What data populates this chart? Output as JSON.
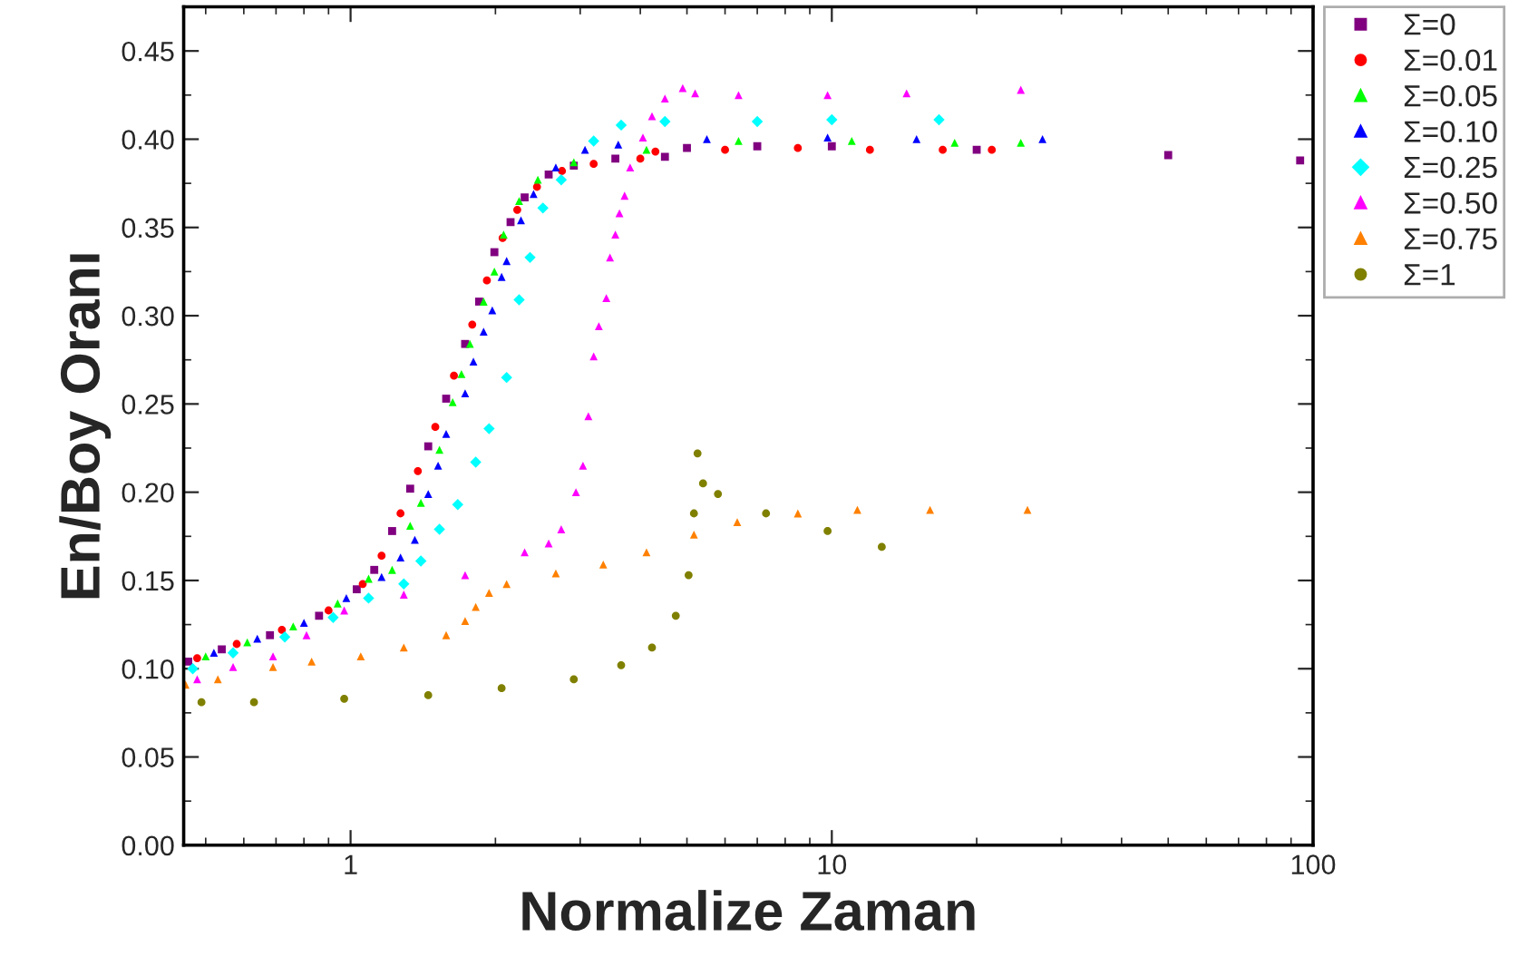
{
  "chart_data": {
    "type": "scatter",
    "xlabel": "Normalize Zaman",
    "ylabel": "En/Boy Oranı",
    "log": "x",
    "xlim": [
      0.45,
      100
    ],
    "xticks": [
      1,
      10,
      100
    ],
    "ylim": [
      0,
      0.475
    ],
    "yticks": [
      {
        "value": 0,
        "label": "0.00"
      },
      {
        "value": 0.05,
        "label": "0.05"
      },
      {
        "value": 0.1,
        "label": "0.10"
      },
      {
        "value": 0.15,
        "label": "0.15"
      },
      {
        "value": 0.2,
        "label": "0.20"
      },
      {
        "value": 0.25,
        "label": "0.25"
      },
      {
        "value": 0.3,
        "label": "0.30"
      },
      {
        "value": 0.35,
        "label": "0.35"
      },
      {
        "value": 0.4,
        "label": "0.40"
      },
      {
        "value": 0.45,
        "label": "0.45"
      }
    ],
    "grid": false,
    "legend": "right",
    "series": [
      {
        "name": "Σ=0",
        "color": "#800080",
        "marker": "square",
        "x": [
          0.46,
          0.54,
          0.68,
          0.86,
          1.03,
          1.12,
          1.22,
          1.33,
          1.45,
          1.58,
          1.73,
          1.85,
          1.99,
          2.15,
          2.3,
          2.58,
          2.91,
          3.55,
          4.5,
          5.0,
          7,
          10,
          20,
          50,
          94
        ],
        "values": [
          0.104,
          0.111,
          0.119,
          0.13,
          0.145,
          0.156,
          0.178,
          0.202,
          0.226,
          0.253,
          0.284,
          0.308,
          0.336,
          0.353,
          0.367,
          0.38,
          0.385,
          0.389,
          0.39,
          0.395,
          0.396,
          0.396,
          0.394,
          0.391,
          0.388
        ]
      },
      {
        "name": "Σ=0.01",
        "color": "#ff0000",
        "marker": "circle",
        "x": [
          0.48,
          0.58,
          0.72,
          0.9,
          1.06,
          1.16,
          1.27,
          1.38,
          1.5,
          1.64,
          1.79,
          1.92,
          2.07,
          2.22,
          2.44,
          2.75,
          3.2,
          4.0,
          4.3,
          6,
          8.5,
          12,
          17,
          21.5
        ],
        "values": [
          0.106,
          0.114,
          0.122,
          0.133,
          0.148,
          0.164,
          0.188,
          0.212,
          0.237,
          0.266,
          0.295,
          0.32,
          0.344,
          0.36,
          0.373,
          0.382,
          0.386,
          0.389,
          0.393,
          0.394,
          0.395,
          0.394,
          0.394,
          0.394
        ]
      },
      {
        "name": "Σ=0.05",
        "color": "#00ff00",
        "marker": "triangle",
        "x": [
          0.5,
          0.61,
          0.76,
          0.94,
          1.09,
          1.22,
          1.33,
          1.4,
          1.53,
          1.63,
          1.7,
          1.77,
          1.89,
          1.99,
          2.08,
          2.24,
          2.45,
          2.91,
          4.12,
          6.4,
          11,
          18,
          24.7
        ],
        "values": [
          0.107,
          0.115,
          0.124,
          0.137,
          0.151,
          0.156,
          0.181,
          0.194,
          0.224,
          0.251,
          0.267,
          0.284,
          0.308,
          0.325,
          0.346,
          0.365,
          0.377,
          0.387,
          0.394,
          0.399,
          0.399,
          0.398,
          0.398
        ]
      },
      {
        "name": "Σ=0.10",
        "color": "#0000ff",
        "marker": "triangle",
        "x": [
          0.52,
          0.64,
          0.8,
          0.98,
          1.16,
          1.27,
          1.36,
          1.45,
          1.52,
          1.58,
          1.73,
          1.8,
          1.89,
          1.97,
          2.06,
          2.11,
          2.26,
          2.4,
          2.67,
          3.07,
          3.6,
          5.5,
          9.8,
          15,
          27.4
        ],
        "values": [
          0.109,
          0.117,
          0.126,
          0.14,
          0.152,
          0.163,
          0.173,
          0.199,
          0.215,
          0.233,
          0.256,
          0.274,
          0.291,
          0.303,
          0.322,
          0.331,
          0.354,
          0.369,
          0.384,
          0.394,
          0.397,
          0.4,
          0.401,
          0.4,
          0.4
        ]
      },
      {
        "name": "Σ=0.25",
        "color": "#00ffff",
        "marker": "diamond",
        "x": [
          0.47,
          0.57,
          0.73,
          0.92,
          1.09,
          1.29,
          1.4,
          1.53,
          1.67,
          1.82,
          1.94,
          2.11,
          2.24,
          2.36,
          2.51,
          2.74,
          3.2,
          3.65,
          4.5,
          7,
          10,
          16.7
        ],
        "values": [
          0.1,
          0.109,
          0.118,
          0.129,
          0.14,
          0.148,
          0.161,
          0.179,
          0.193,
          0.217,
          0.236,
          0.265,
          0.309,
          0.333,
          0.361,
          0.377,
          0.399,
          0.408,
          0.41,
          0.41,
          0.411,
          0.411
        ]
      },
      {
        "name": "Σ=0.50",
        "color": "#ff00ff",
        "marker": "triangle",
        "x": [
          0.48,
          0.57,
          0.69,
          0.81,
          0.97,
          1.29,
          1.73,
          2.3,
          2.58,
          2.74,
          2.94,
          3.04,
          3.12,
          3.2,
          3.28,
          3.4,
          3.46,
          3.55,
          3.62,
          3.71,
          3.81,
          4.05,
          4.23,
          4.5,
          4.9,
          5.2,
          6.4,
          9.8,
          14.3,
          24.7
        ],
        "values": [
          0.094,
          0.101,
          0.107,
          0.119,
          0.133,
          0.142,
          0.153,
          0.166,
          0.171,
          0.179,
          0.2,
          0.215,
          0.243,
          0.277,
          0.294,
          0.31,
          0.333,
          0.346,
          0.358,
          0.368,
          0.384,
          0.401,
          0.413,
          0.423,
          0.429,
          0.426,
          0.425,
          0.425,
          0.426,
          0.428
        ]
      },
      {
        "name": "Σ=0.75",
        "color": "#ff8000",
        "marker": "triangle",
        "x": [
          0.454,
          0.53,
          0.69,
          0.83,
          1.05,
          1.29,
          1.58,
          1.73,
          1.82,
          1.94,
          2.11,
          2.67,
          3.35,
          4.12,
          5.17,
          6.36,
          8.5,
          11.3,
          16,
          25.5
        ],
        "values": [
          0.091,
          0.094,
          0.101,
          0.104,
          0.107,
          0.112,
          0.119,
          0.127,
          0.135,
          0.143,
          0.148,
          0.154,
          0.159,
          0.166,
          0.176,
          0.183,
          0.188,
          0.19,
          0.19,
          0.19
        ]
      },
      {
        "name": "Σ=1",
        "color": "#808000",
        "marker": "circle",
        "x": [
          0.49,
          0.63,
          0.97,
          1.45,
          2.06,
          2.91,
          3.65,
          4.23,
          4.74,
          5.04,
          5.17,
          5.26,
          5.4,
          5.8,
          7.3,
          9.8,
          12.7
        ],
        "values": [
          0.081,
          0.081,
          0.083,
          0.085,
          0.089,
          0.094,
          0.102,
          0.112,
          0.13,
          0.153,
          0.188,
          0.222,
          0.205,
          0.199,
          0.188,
          0.178,
          0.169
        ]
      }
    ]
  }
}
